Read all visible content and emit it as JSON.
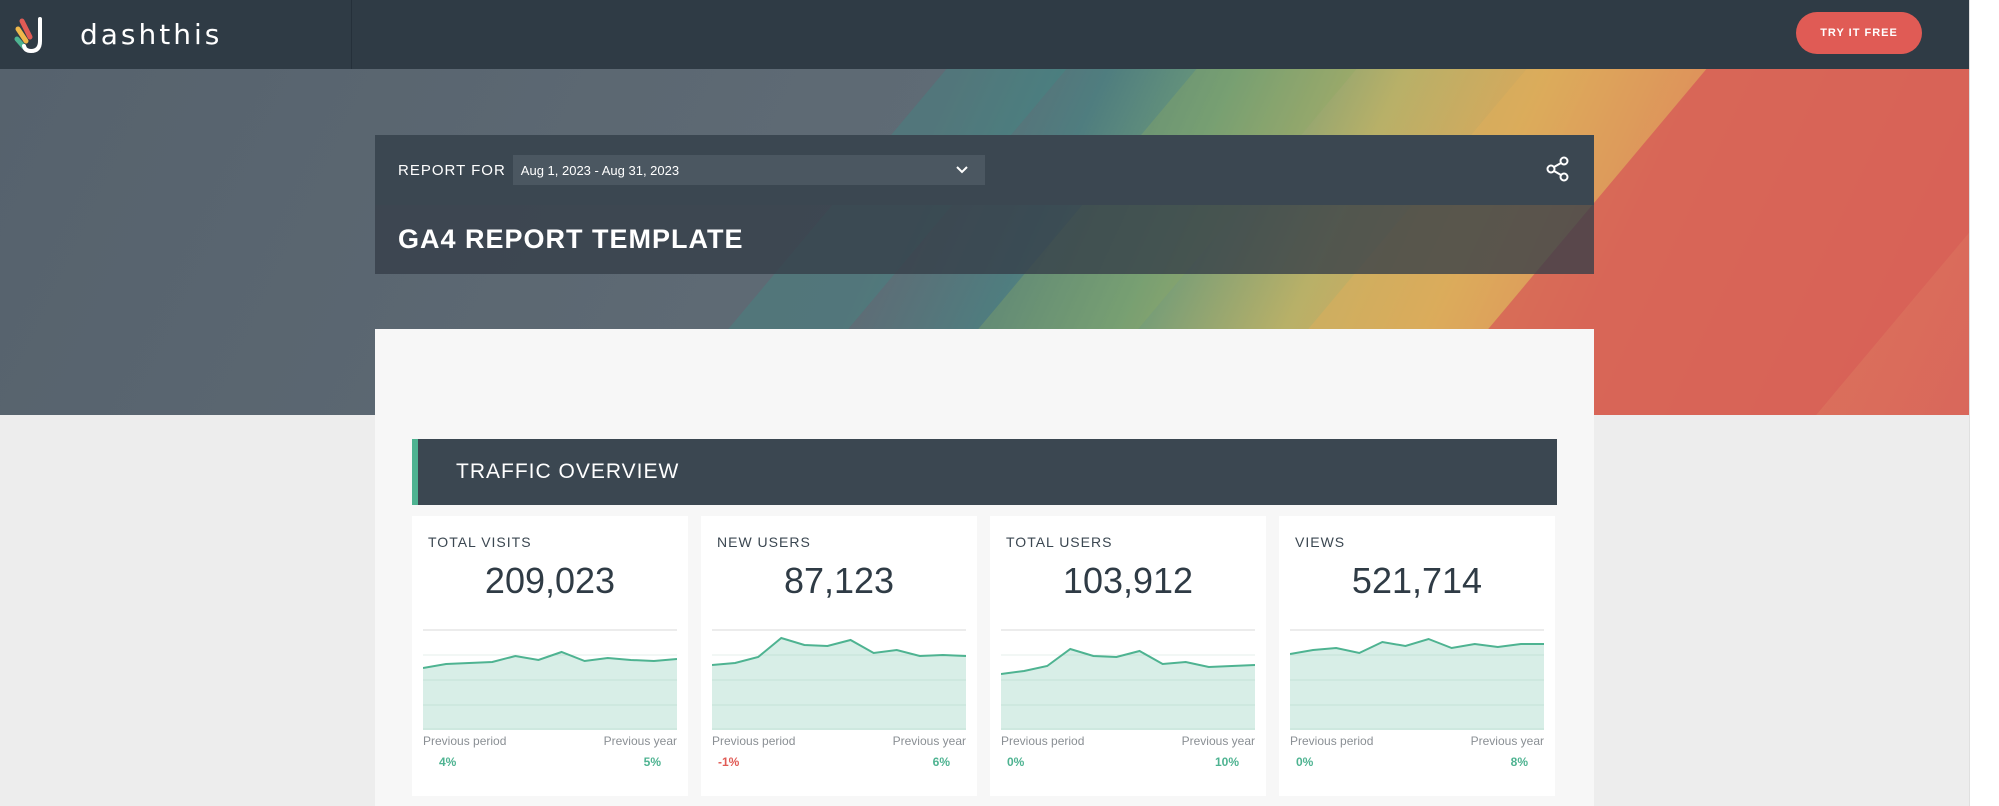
{
  "nav": {
    "brand": "dashthis",
    "cta_label": "TRY IT FREE",
    "cta_color": "#e05b55"
  },
  "report": {
    "report_for_label": "REPORT FOR",
    "date_range": "Aug 1, 2023 - Aug 31, 2023",
    "title": "GA4 REPORT TEMPLATE"
  },
  "section": {
    "title": "TRAFFIC OVERVIEW",
    "accent": "#4eb391"
  },
  "cards": [
    {
      "label": "TOTAL VISITS",
      "value": "209,023",
      "prev_period_label": "Previous period",
      "prev_period": "4%",
      "prev_period_sign": "pos",
      "prev_year_label": "Previous year",
      "prev_year": "5%",
      "prev_year_sign": "pos",
      "spark": [
        62,
        66,
        67,
        68,
        74,
        70,
        78,
        69,
        72,
        70,
        69,
        71
      ]
    },
    {
      "label": "NEW USERS",
      "value": "87,123",
      "prev_period_label": "Previous period",
      "prev_period": "-1%",
      "prev_period_sign": "neg",
      "prev_year_label": "Previous year",
      "prev_year": "6%",
      "prev_year_sign": "pos",
      "spark": [
        65,
        67,
        73,
        92,
        85,
        84,
        90,
        77,
        80,
        74,
        75,
        74
      ]
    },
    {
      "label": "TOTAL USERS",
      "value": "103,912",
      "prev_period_label": "Previous period",
      "prev_period": "0%",
      "prev_period_sign": "pos",
      "prev_year_label": "Previous year",
      "prev_year": "10%",
      "prev_year_sign": "pos",
      "spark": [
        56,
        59,
        64,
        81,
        74,
        73,
        79,
        66,
        68,
        63,
        64,
        65
      ]
    },
    {
      "label": "VIEWS",
      "value": "521,714",
      "prev_period_label": "Previous period",
      "prev_period": "0%",
      "prev_period_sign": "pos",
      "prev_year_label": "Previous year",
      "prev_year": "8%",
      "prev_year_sign": "pos",
      "spark": [
        76,
        80,
        82,
        77,
        88,
        84,
        91,
        82,
        86,
        83,
        86,
        86
      ]
    }
  ]
}
